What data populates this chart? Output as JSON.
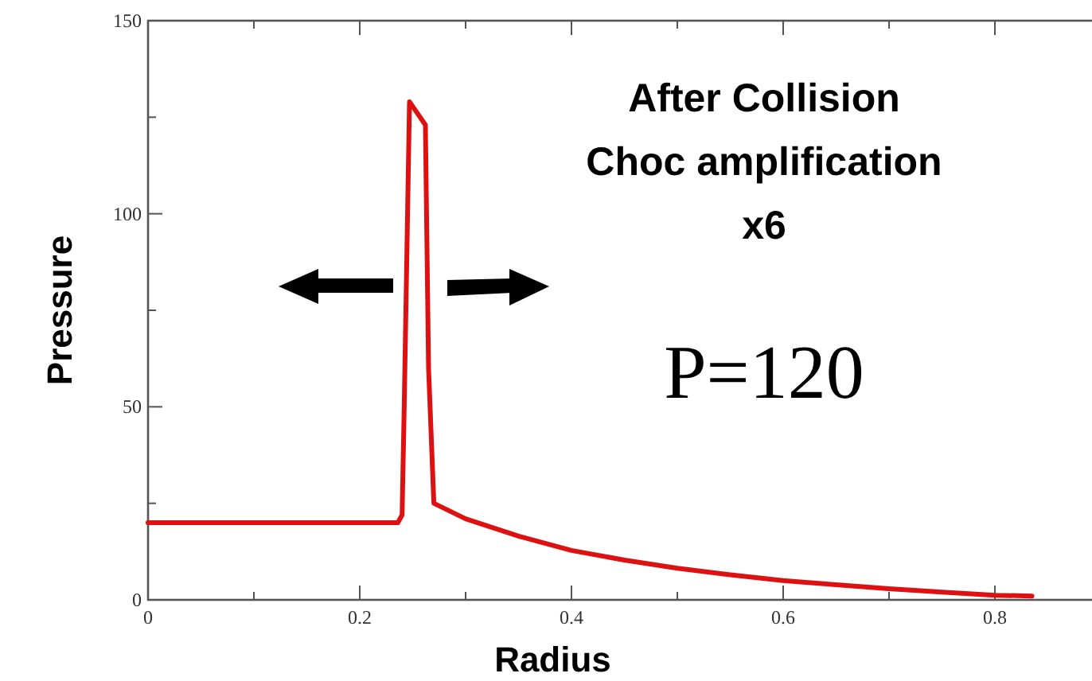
{
  "chart_data": {
    "type": "line",
    "xlabel": "Radius",
    "ylabel": "Pressure",
    "annotations": [
      "After Collision\nChoc amplification\nx6",
      "P=120"
    ],
    "xlim": [
      0,
      0.9
    ],
    "ylim": [
      0,
      150
    ],
    "xticks": [
      0,
      {
        "value": 0.1,
        "label": null
      },
      0.2,
      {
        "value": 0.3,
        "label": null
      },
      0.4,
      {
        "value": 0.5,
        "label": null
      },
      0.6,
      {
        "value": 0.7,
        "label": null
      },
      0.8
    ],
    "yticks": [
      0,
      {
        "value": 25,
        "label": null
      },
      50,
      {
        "value": 75,
        "label": null
      },
      100,
      {
        "value": 125,
        "label": null
      },
      150
    ],
    "grid": false,
    "marker": "none",
    "line_style": "solid",
    "series": [
      {
        "color": "#dd1111",
        "x": [
          0,
          0.1,
          0.2,
          0.236,
          0.24,
          0.242,
          0.247,
          0.252,
          0.262,
          0.265,
          0.27,
          0.3,
          0.35,
          0.4,
          0.45,
          0.5,
          0.55,
          0.6,
          0.65,
          0.7,
          0.75,
          0.8,
          0.835
        ],
        "values": [
          20,
          20,
          20,
          20,
          22,
          50,
          129,
          127,
          123,
          60,
          25,
          21,
          16.5,
          12.8,
          10.3,
          8.2,
          6.5,
          5,
          3.9,
          2.9,
          2,
          1.2,
          1
        ]
      }
    ]
  }
}
